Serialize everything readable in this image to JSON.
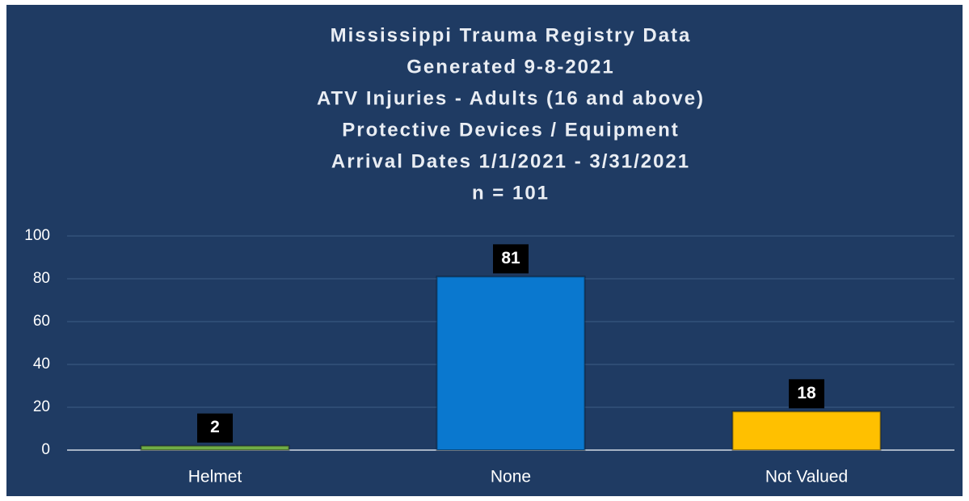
{
  "chart_data": {
    "type": "bar",
    "title": [
      "Mississippi Trauma Registry Data",
      "Generated 9-8-2021",
      "ATV Injuries - Adults (16 and above)",
      "Protective Devices / Equipment",
      "Arrival Dates 1/1/2021 - 3/31/2021",
      "n = 101"
    ],
    "categories": [
      "Helmet",
      "None",
      "Not Valued"
    ],
    "values": [
      2,
      81,
      18
    ],
    "colors": [
      "#70ad47",
      "#0a78cf",
      "#ffc000"
    ],
    "ylim": [
      0,
      100
    ],
    "yticks": [
      0,
      20,
      40,
      60,
      80,
      100
    ],
    "grid": true
  }
}
